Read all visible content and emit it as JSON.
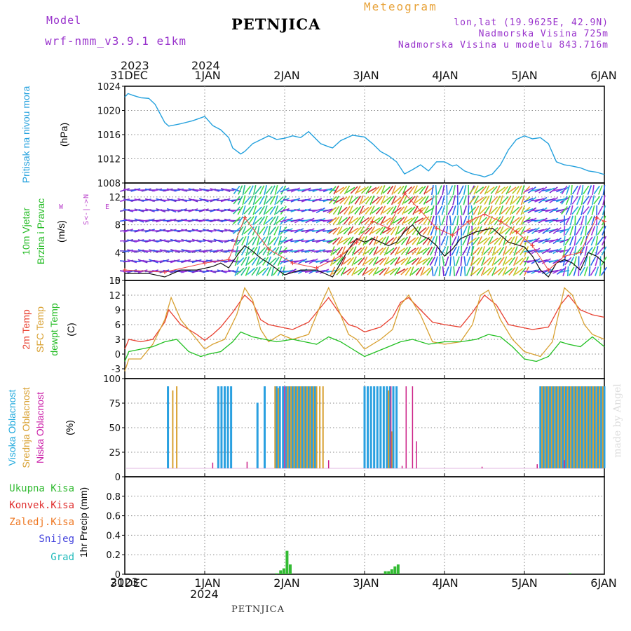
{
  "header": {
    "model_label": "Model",
    "model_version": "wrf-nmm_v3.9.1  e1km",
    "station": "PETNJICA",
    "meteogram": "Meteogram",
    "lonlat": "lon,lat (19.9625E, 42.9N)",
    "elevation": "Nadmorska Visina 725m",
    "model_elevation": "Nadmorska Visina u modelu 843.716m"
  },
  "footer": {
    "station": "PETNJICA",
    "watermark": "made by Angel"
  },
  "timeline": {
    "top_years": [
      "2023",
      "2024"
    ],
    "bottom_years": [
      "2023",
      "2024"
    ],
    "day_labels": [
      "31DEC",
      "1JAN",
      "2JAN",
      "3JAN",
      "4JAN",
      "5JAN",
      "6JAN"
    ]
  },
  "panels": {
    "pressure": {
      "label1": "Pritisak na nivou mora",
      "unit": "(hPa)"
    },
    "wind": {
      "label1": "10m Vjetar",
      "label2": "Brzina i Pravac",
      "unit": "(m/s)",
      "compass_n": "N",
      "compass_s": "S",
      "compass_e": "E",
      "compass_w": "W",
      "compass_mid": "<-|->"
    },
    "temp": {
      "label1": "2m Temp",
      "label2": "SFC Temp",
      "label3": "dewpt Temp",
      "unit": "(C)"
    },
    "cloud": {
      "label1": "Visoka Oblacnost",
      "label2": "Srednja Oblacnost",
      "label3": "Niska Oblacnost",
      "unit": "(%)"
    },
    "precip": {
      "legend": [
        "Ukupna Kisa",
        "Konvek.Kisa",
        "Zaledj.Kisa",
        "Snijeg",
        "Grad"
      ],
      "unit": "1hr Precip (mm)"
    }
  },
  "colors": {
    "pressure": "#22a0dd",
    "t2m": "#e84030",
    "tsfc": "#d8a030",
    "dewpt": "#22c022",
    "high_cloud": "#2aa0e0",
    "mid_cloud": "#d8a030",
    "low_cloud": "#cc2288",
    "total_rain": "#33bb33",
    "conv_rain": "#e03030",
    "frz_rain": "#ee7722",
    "snow": "#4444dd",
    "hail": "#22bbbb",
    "label_green": "#22bb22",
    "label_cyan": "#22aadd",
    "label_magenta": "#cc22aa"
  },
  "chart_data": [
    {
      "type": "line",
      "title": "Pritisak na nivou mora",
      "ylabel": "(hPa)",
      "ylim": [
        1008,
        1024
      ],
      "yticks": [
        1008,
        1012,
        1016,
        1020,
        1024
      ],
      "xlim_days": [
        0,
        6
      ],
      "grid": true,
      "series": [
        {
          "name": "Pritisak na nivou mora",
          "x": [
            0,
            0.04,
            0.1,
            0.2,
            0.3,
            0.38,
            0.5,
            0.55,
            0.7,
            0.85,
            1.0,
            1.1,
            1.2,
            1.3,
            1.35,
            1.45,
            1.5,
            1.6,
            1.8,
            1.9,
            2.0,
            2.1,
            2.2,
            2.3,
            2.45,
            2.55,
            2.6,
            2.7,
            2.85,
            3.0,
            3.1,
            3.2,
            3.3,
            3.4,
            3.5,
            3.6,
            3.7,
            3.8,
            3.9,
            4.0,
            4.1,
            4.15,
            4.25,
            4.35,
            4.45,
            4.5,
            4.6,
            4.7,
            4.8,
            4.9,
            5.0,
            5.1,
            5.2,
            5.3,
            5.4,
            5.5,
            5.6,
            5.7,
            5.8,
            5.9,
            6.0
          ],
          "y": [
            1022.2,
            1022.8,
            1022.5,
            1022.1,
            1022.0,
            1021.0,
            1018.0,
            1017.4,
            1017.8,
            1018.3,
            1019.0,
            1017.5,
            1016.8,
            1015.5,
            1013.8,
            1012.8,
            1013.2,
            1014.5,
            1015.8,
            1015.2,
            1015.4,
            1015.8,
            1015.5,
            1016.5,
            1014.5,
            1014.0,
            1013.8,
            1015.0,
            1015.9,
            1015.6,
            1014.5,
            1013.2,
            1012.5,
            1011.5,
            1009.5,
            1010.2,
            1011.0,
            1010.0,
            1011.5,
            1011.5,
            1010.8,
            1011.0,
            1010.0,
            1009.5,
            1009.2,
            1009.0,
            1009.5,
            1011.0,
            1013.5,
            1015.2,
            1015.8,
            1015.3,
            1015.5,
            1014.5,
            1011.5,
            1011.0,
            1010.8,
            1010.5,
            1010.0,
            1009.8,
            1009.4
          ]
        }
      ]
    },
    {
      "type": "line",
      "title": "10m Vjetar Brzina i Pravac",
      "ylabel": "(m/s)",
      "ylim": [
        0,
        14
      ],
      "yticks": [
        0,
        4,
        8,
        12
      ],
      "xlim_days": [
        0,
        6
      ],
      "grid": true,
      "series": [
        {
          "name": "speed",
          "x": [
            0,
            0.3,
            0.5,
            0.7,
            0.9,
            1.1,
            1.2,
            1.3,
            1.4,
            1.5,
            1.6,
            1.7,
            1.8,
            2.0,
            2.2,
            2.4,
            2.6,
            2.7,
            2.8,
            2.9,
            3.0,
            3.1,
            3.2,
            3.3,
            3.4,
            3.5,
            3.6,
            3.7,
            3.8,
            3.9,
            4.0,
            4.1,
            4.2,
            4.4,
            4.6,
            4.8,
            5.0,
            5.1,
            5.2,
            5.3,
            5.4,
            5.5,
            5.6,
            5.7,
            5.8,
            5.9,
            6.0
          ],
          "y": [
            1.0,
            1.0,
            0.5,
            1.5,
            1.5,
            2.0,
            2.5,
            1.8,
            3.5,
            5.0,
            4.2,
            3.2,
            2.5,
            0.8,
            1.5,
            1.5,
            0.5,
            2.5,
            4.5,
            6.0,
            5.5,
            6.0,
            5.5,
            5.0,
            5.5,
            7.0,
            8.0,
            6.5,
            6.0,
            5.0,
            3.5,
            4.5,
            6.0,
            7.0,
            7.5,
            5.5,
            4.8,
            3.5,
            1.5,
            0.5,
            2.5,
            3.0,
            2.5,
            1.5,
            4.0,
            3.5,
            2.5
          ]
        },
        {
          "name": "gusts",
          "x": [
            0,
            0.5,
            1.0,
            1.3,
            1.5,
            1.8,
            2.1,
            2.4,
            2.7,
            2.9,
            3.1,
            3.3,
            3.5,
            3.7,
            3.9,
            4.1,
            4.3,
            4.5,
            4.7,
            4.9,
            5.1,
            5.3,
            5.5,
            5.7,
            5.9,
            6.0
          ],
          "y": [
            1.5,
            1.2,
            2.5,
            3.0,
            9.0,
            4.5,
            2.5,
            1.8,
            3.5,
            5.5,
            8.5,
            7.5,
            12.5,
            10.0,
            7.5,
            6.5,
            8.5,
            9.5,
            8.5,
            7.0,
            5.0,
            1.5,
            3.5,
            4.0,
            9.0,
            8.5
          ]
        }
      ]
    },
    {
      "type": "line",
      "title": "2m Temp / SFC Temp / dewpt Temp",
      "ylabel": "(C)",
      "ylim": [
        -5,
        15
      ],
      "yticks": [
        -3,
        0,
        3,
        6,
        9,
        12,
        15
      ],
      "xlim_days": [
        0,
        6
      ],
      "grid": true,
      "series": [
        {
          "name": "2m Temp",
          "x": [
            0,
            0.05,
            0.2,
            0.35,
            0.5,
            0.55,
            0.7,
            0.9,
            1.0,
            1.1,
            1.2,
            1.35,
            1.5,
            1.6,
            1.7,
            1.8,
            1.95,
            2.1,
            2.3,
            2.5,
            2.55,
            2.7,
            2.8,
            2.9,
            3.0,
            3.2,
            3.35,
            3.45,
            3.55,
            3.7,
            3.85,
            4.0,
            4.2,
            4.35,
            4.5,
            4.65,
            4.8,
            4.95,
            5.1,
            5.3,
            5.45,
            5.55,
            5.7,
            5.85,
            6.0
          ],
          "y": [
            1.0,
            3.0,
            2.5,
            3.0,
            6.5,
            9.0,
            6.0,
            4.0,
            2.8,
            4.0,
            5.5,
            8.5,
            12.0,
            10.5,
            7.0,
            6.0,
            5.5,
            5.0,
            6.5,
            10.5,
            11.5,
            8.0,
            6.0,
            5.5,
            4.5,
            5.5,
            7.5,
            10.5,
            11.5,
            9.0,
            6.5,
            6.0,
            5.5,
            8.5,
            12.0,
            10.0,
            6.0,
            5.5,
            5.0,
            5.5,
            10.0,
            12.0,
            9.0,
            8.0,
            7.5
          ]
        },
        {
          "name": "SFC Temp",
          "x": [
            0,
            0.05,
            0.2,
            0.35,
            0.5,
            0.58,
            0.7,
            0.9,
            1.0,
            1.1,
            1.25,
            1.4,
            1.5,
            1.6,
            1.7,
            1.8,
            1.95,
            2.1,
            2.3,
            2.45,
            2.55,
            2.7,
            2.8,
            2.9,
            3.0,
            3.2,
            3.35,
            3.45,
            3.55,
            3.7,
            3.85,
            4.0,
            4.2,
            4.35,
            4.45,
            4.55,
            4.7,
            4.85,
            5.0,
            5.2,
            5.35,
            5.5,
            5.6,
            5.75,
            5.85,
            6.0
          ],
          "y": [
            -3.5,
            -1.0,
            -1.0,
            2.0,
            7.0,
            11.5,
            7.0,
            3.0,
            1.0,
            2.0,
            3.0,
            8.0,
            13.5,
            11.0,
            5.0,
            2.5,
            4.0,
            3.0,
            4.0,
            10.0,
            13.5,
            8.0,
            4.0,
            3.0,
            1.0,
            3.0,
            5.0,
            10.0,
            12.0,
            8.0,
            2.5,
            2.0,
            2.5,
            6.0,
            12.0,
            13.0,
            7.0,
            3.0,
            0.5,
            -0.5,
            2.5,
            13.5,
            12.0,
            6.0,
            4.0,
            3.0
          ]
        },
        {
          "name": "dewpt Temp",
          "x": [
            0,
            0.05,
            0.2,
            0.35,
            0.5,
            0.65,
            0.8,
            0.95,
            1.05,
            1.2,
            1.35,
            1.45,
            1.6,
            1.75,
            1.9,
            2.1,
            2.25,
            2.4,
            2.55,
            2.7,
            2.85,
            3.0,
            3.15,
            3.3,
            3.45,
            3.6,
            3.8,
            4.0,
            4.2,
            4.4,
            4.55,
            4.7,
            4.85,
            5.0,
            5.15,
            5.3,
            5.45,
            5.55,
            5.7,
            5.85,
            6.0
          ],
          "y": [
            -1.5,
            0.5,
            1.0,
            1.5,
            2.5,
            3.0,
            0.5,
            -0.5,
            0.0,
            0.5,
            2.5,
            4.5,
            3.5,
            3.0,
            2.5,
            3.0,
            2.5,
            2.0,
            3.5,
            2.5,
            1.0,
            -0.5,
            0.5,
            1.5,
            2.5,
            3.0,
            2.0,
            2.5,
            2.5,
            3.0,
            4.0,
            3.5,
            1.5,
            -1.0,
            -1.5,
            -0.5,
            2.5,
            2.0,
            1.5,
            3.5,
            1.5
          ]
        }
      ]
    },
    {
      "type": "bar",
      "title": "Visoka / Srednja / Niska Oblacnost",
      "ylabel": "(%)",
      "ylim": [
        0,
        100
      ],
      "yticks": [
        0,
        25,
        50,
        75,
        100
      ],
      "xlim_days": [
        0,
        6
      ],
      "grid": true,
      "series": [
        {
          "name": "Visoka Oblacnost",
          "x": [
            0.54,
            1.17,
            1.21,
            1.25,
            1.29,
            1.33,
            1.66,
            1.75,
            1.9,
            1.94,
            1.98,
            2.02,
            2.06,
            2.1,
            2.14,
            2.18,
            2.22,
            2.26,
            2.3,
            2.34,
            2.38,
            3.0,
            3.04,
            3.08,
            3.12,
            3.16,
            3.2,
            3.24,
            3.28,
            3.32,
            3.36,
            3.4,
            5.2,
            5.24,
            5.28,
            5.32,
            5.36,
            5.4,
            5.44,
            5.48,
            5.52,
            5.56,
            5.6,
            5.64,
            5.68,
            5.72,
            5.76,
            5.8,
            5.84,
            5.88,
            5.92,
            5.96,
            6.0
          ],
          "y": [
            100,
            100,
            100,
            100,
            100,
            100,
            80,
            100,
            100,
            100,
            100,
            100,
            100,
            100,
            100,
            100,
            100,
            100,
            100,
            100,
            100,
            100,
            100,
            100,
            100,
            100,
            100,
            100,
            100,
            100,
            100,
            100,
            100,
            100,
            100,
            100,
            100,
            100,
            100,
            100,
            100,
            100,
            100,
            100,
            100,
            100,
            100,
            100,
            100,
            100,
            100,
            100,
            100
          ]
        },
        {
          "name": "Srednja Oblacnost",
          "x": [
            0.6,
            0.65,
            1.88,
            1.92,
            2.04,
            2.08,
            2.12,
            2.16,
            2.2,
            2.24,
            2.28,
            2.32,
            2.36,
            2.4,
            2.44,
            2.48,
            3.3,
            3.34,
            5.22,
            5.26,
            5.3,
            5.34,
            5.38,
            5.42,
            5.46,
            5.5,
            5.54,
            5.58,
            5.62,
            5.66,
            5.7,
            5.74,
            5.78,
            5.82,
            5.86,
            5.9,
            5.94,
            5.98
          ],
          "y": [
            95,
            100,
            100,
            98,
            100,
            100,
            100,
            100,
            100,
            100,
            100,
            100,
            100,
            100,
            100,
            100,
            95,
            45,
            100,
            100,
            100,
            100,
            100,
            100,
            100,
            100,
            100,
            100,
            100,
            100,
            100,
            100,
            100,
            100,
            100,
            100,
            100,
            100
          ]
        },
        {
          "name": "Niska Oblacnost",
          "x": [
            1.1,
            1.53,
            2.0,
            2.55,
            3.33,
            3.47,
            3.52,
            3.6,
            3.65,
            4.47,
            5.16,
            5.5
          ],
          "y": [
            7,
            8,
            100,
            10,
            100,
            3,
            100,
            100,
            33,
            2,
            5,
            10
          ]
        }
      ]
    },
    {
      "type": "bar",
      "title": "1hr Precip",
      "ylabel": "1hr Precip (mm)",
      "ylim": [
        0,
        1.0
      ],
      "yticks": [
        0,
        0.2,
        0.4,
        0.6,
        0.8
      ],
      "xlim_days": [
        0,
        6
      ],
      "grid": true,
      "series": [
        {
          "name": "Ukupna Kisa",
          "x": [
            1.9,
            1.95,
            1.99,
            2.03,
            2.07,
            3.26,
            3.3,
            3.34,
            3.38,
            3.42,
            5.57
          ],
          "y": [
            0.01,
            0.04,
            0.06,
            0.24,
            0.1,
            0.03,
            0.03,
            0.05,
            0.08,
            0.1,
            0.01
          ]
        }
      ]
    }
  ]
}
